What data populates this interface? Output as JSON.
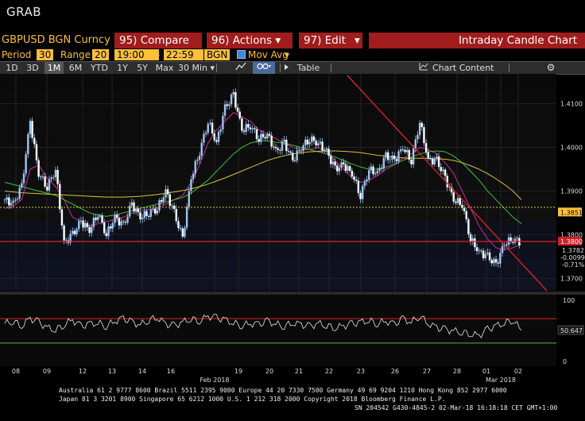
{
  "app": {
    "title": "GRAB"
  },
  "menu": {
    "ticker": "GBPUSD BGN Curncy",
    "compare": "95) Compare",
    "actions": "96) Actions",
    "edit": "97) Edit",
    "chart_type": "Intraday Candle Chart"
  },
  "settings": {
    "period_label": "Period",
    "period_value": "30",
    "range_label": "Range",
    "range_value": "20",
    "start_time": "19:00",
    "dash": "-",
    "end_time": "22:59",
    "source": "BGN",
    "mov_avg_label": "Mov Avg"
  },
  "toolbar": {
    "ranges": [
      "1D",
      "3D",
      "1M",
      "6M",
      "YTD",
      "1Y",
      "5Y",
      "Max"
    ],
    "active_range": "1M",
    "interval": "30 Min",
    "table_label": "Table",
    "chart_content_label": "Chart Content"
  },
  "colors": {
    "menu_bg": "#a11c1c",
    "accent": "#fbbf3a",
    "candle": "#9fc4f0",
    "ma_short": "#cc2c9a",
    "ma_mid": "#3fbf3f",
    "ma_long": "#d8c43a",
    "trendline": "#e0202a",
    "price_badge": "#fbbf3a",
    "level_badge": "#d21f2a"
  },
  "chart_data": {
    "type": "line",
    "y_ticks": [
      "1.4100",
      "1.4000",
      "1.3900",
      "1.3800",
      "1.3700"
    ],
    "y_range": [
      1.3675,
      1.4165
    ],
    "date_labels": [
      "08",
      "09",
      "12",
      "13",
      "14",
      "Feb 2018",
      "16",
      "19",
      "20",
      "21",
      "22",
      "23",
      "26",
      "27",
      "28",
      "01",
      "Mar 2018",
      "02"
    ],
    "price_badge": "1.3851",
    "level_badge": "1.3800",
    "last_price": "1.3782",
    "change": "-0.0099",
    "change_pct": "-0.71%",
    "series": [
      {
        "name": "",
        "values": [
          1.388,
          1.387,
          1.391,
          1.406,
          1.394,
          1.391,
          1.395,
          1.378,
          1.38,
          1.383,
          1.381,
          1.385,
          1.38,
          1.384,
          1.382,
          1.387,
          1.384,
          1.385,
          1.386,
          1.39,
          1.385,
          1.379,
          1.393,
          1.399,
          1.406,
          1.401,
          1.409,
          1.412,
          1.404,
          1.405,
          1.402,
          1.403,
          1.399,
          1.401,
          1.397,
          1.4,
          1.402,
          1.401,
          1.399,
          1.395,
          1.396,
          1.394,
          1.389,
          1.395,
          1.394,
          1.398,
          1.397,
          1.4,
          1.397,
          1.406,
          1.397,
          1.397,
          1.393,
          1.388,
          1.387,
          1.379,
          1.376,
          1.375,
          1.373,
          1.378,
          1.379,
          1.3782
        ]
      },
      {
        "name": "",
        "values": [
          1.386,
          1.3865,
          1.388,
          1.395,
          1.396,
          1.393,
          1.391,
          1.388,
          1.384,
          1.383,
          1.382,
          1.3825,
          1.383,
          1.3835,
          1.384,
          1.385,
          1.3855,
          1.3858,
          1.386,
          1.387,
          1.388,
          1.389,
          1.392,
          1.396,
          1.401,
          1.404,
          1.406,
          1.408,
          1.407,
          1.406,
          1.404,
          1.403,
          1.402,
          1.401,
          1.4,
          1.3995,
          1.3995,
          1.4,
          1.399,
          1.397,
          1.395,
          1.393,
          1.392,
          1.3925,
          1.3935,
          1.395,
          1.396,
          1.3975,
          1.3985,
          1.4,
          1.3995,
          1.3985,
          1.3965,
          1.394,
          1.39,
          1.386,
          1.382,
          1.379,
          1.377,
          1.3765,
          1.377,
          1.3778
        ]
      },
      {
        "name": "",
        "values": [
          1.392,
          1.3915,
          1.391,
          1.3905,
          1.39,
          1.3895,
          1.389,
          1.388,
          1.387,
          1.386,
          1.385,
          1.3845,
          1.3842,
          1.3845,
          1.385,
          1.3855,
          1.386,
          1.3865,
          1.387,
          1.3875,
          1.388,
          1.3885,
          1.3895,
          1.391,
          1.3925,
          1.3945,
          1.3965,
          1.3985,
          1.4,
          1.401,
          1.4015,
          1.4015,
          1.4012,
          1.401,
          1.4005,
          1.4,
          1.3995,
          1.399,
          1.3985,
          1.3978,
          1.397,
          1.3962,
          1.3955,
          1.395,
          1.395,
          1.3955,
          1.3962,
          1.397,
          1.3978,
          1.3985,
          1.399,
          1.3992,
          1.399,
          1.398,
          1.3965,
          1.3945,
          1.3925,
          1.39,
          1.388,
          1.386,
          1.384,
          1.3825
        ]
      },
      {
        "name": "",
        "values": [
          1.39,
          1.3898,
          1.3896,
          1.3895,
          1.3894,
          1.3893,
          1.3892,
          1.3891,
          1.389,
          1.3889,
          1.3888,
          1.3887,
          1.3886,
          1.3886,
          1.3886,
          1.3887,
          1.3888,
          1.389,
          1.3892,
          1.3895,
          1.3898,
          1.3901,
          1.3905,
          1.391,
          1.3916,
          1.3923,
          1.393,
          1.3938,
          1.3946,
          1.3954,
          1.3962,
          1.397,
          1.3976,
          1.3981,
          1.3985,
          1.3988,
          1.399,
          1.3991,
          1.3992,
          1.3992,
          1.3991,
          1.399,
          1.3988,
          1.3985,
          1.3982,
          1.398,
          1.3978,
          1.3976,
          1.3975,
          1.3975,
          1.3975,
          1.3974,
          1.3973,
          1.397,
          1.3965,
          1.3958,
          1.395,
          1.394,
          1.3928,
          1.3915,
          1.39,
          1.388
        ]
      }
    ],
    "oscillator": {
      "y_ticks": [
        "100",
        "50",
        "0"
      ],
      "y_range": [
        0,
        100
      ],
      "last_value": "50.647",
      "values": [
        62,
        66,
        58,
        70,
        64,
        55,
        52,
        60,
        68,
        57,
        61,
        63,
        58,
        66,
        70,
        64,
        60,
        68,
        72,
        61,
        58,
        64,
        70,
        66,
        74,
        71,
        68,
        63,
        59,
        62,
        60,
        66,
        61,
        58,
        63,
        60,
        57,
        62,
        59,
        55,
        58,
        61,
        64,
        67,
        62,
        66,
        60,
        70,
        64,
        75,
        62,
        55,
        52,
        50,
        48,
        45,
        42,
        52,
        58,
        63,
        68,
        50.6
      ]
    }
  },
  "footer": {
    "line1": "Australia 61 2 9777 8600 Brazil 5511 2395 9000 Europe 44 20 7330 7500 Germany 49 69 9204 1210 Hong Kong 852 2977 6000",
    "line2": "Japan 81 3 3201 8900        Singapore 65 6212 1000       U.S. 1 212 318 2000             Copyright 2018 Bloomberg Finance L.P.",
    "line3": "SN 204542 G430-4845-2 02-Mar-18 16:18:18 CET  GMT+1:00"
  }
}
